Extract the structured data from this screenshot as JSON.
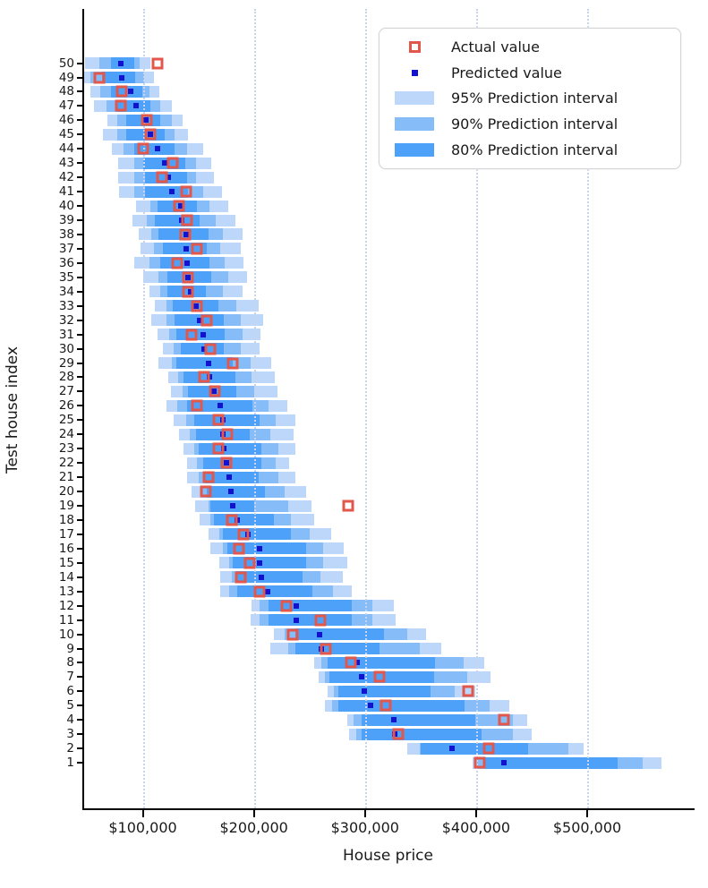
{
  "figure": {
    "xlabel": "House price",
    "ylabel": "Test house index"
  },
  "legend": {
    "items": [
      {
        "label": "Actual value",
        "marker": "actual"
      },
      {
        "label": "Predicted value",
        "marker": "predicted"
      },
      {
        "label": "95% Prediction interval",
        "marker": "swatch",
        "color_key": "p95"
      },
      {
        "label": "90% Prediction interval",
        "marker": "swatch",
        "color_key": "p90"
      },
      {
        "label": "80% Prediction interval",
        "marker": "swatch",
        "color_key": "p80"
      }
    ]
  },
  "chart_data": {
    "type": "bar",
    "orientation": "horizontal",
    "title": "",
    "xlabel": "House price",
    "ylabel": "Test house index",
    "xlim": [
      45600,
      595900
    ],
    "grid": "vertical-dotted",
    "legend_position": "upper right",
    "x_tick_values": [
      100000,
      200000,
      300000,
      400000,
      500000
    ],
    "x_tick_labels": [
      "$100,000",
      "$200,000",
      "$300,000",
      "$400,000",
      "$500,000"
    ],
    "colors": {
      "p95": "#bdd7fb",
      "p90": "#86bdf8",
      "p80": "#4da1f8",
      "predicted": "#1212cf",
      "actual": "#e2574b",
      "grid": "#c9d4ec",
      "axis": "#000000"
    },
    "rows": [
      {
        "index": 50,
        "p95": [
          48000,
          107000
        ],
        "p90": [
          61000,
          97000
        ],
        "p80": [
          71000,
          92000
        ],
        "predicted": 80000,
        "actual": 113000
      },
      {
        "index": 49,
        "p95": [
          45000,
          110000
        ],
        "p90": [
          53000,
          101000
        ],
        "p80": [
          63000,
          93000
        ],
        "predicted": 81000,
        "actual": 61000
      },
      {
        "index": 48,
        "p95": [
          53000,
          115000
        ],
        "p90": [
          62000,
          106000
        ],
        "p80": [
          71000,
          100000
        ],
        "predicted": 89000,
        "actual": 81000
      },
      {
        "index": 47,
        "p95": [
          56000,
          126000
        ],
        "p90": [
          67000,
          116000
        ],
        "p80": [
          76000,
          107000
        ],
        "predicted": 94000,
        "actual": 80000
      },
      {
        "index": 46,
        "p95": [
          68000,
          136000
        ],
        "p90": [
          77000,
          126000
        ],
        "p80": [
          85000,
          116000
        ],
        "predicted": 103000,
        "actual": 104000
      },
      {
        "index": 45,
        "p95": [
          64000,
          141000
        ],
        "p90": [
          77000,
          129000
        ],
        "p80": [
          85000,
          120000
        ],
        "predicted": 107000,
        "actual": 107000
      },
      {
        "index": 44,
        "p95": [
          72000,
          154000
        ],
        "p90": [
          83000,
          140000
        ],
        "p80": [
          92000,
          129000
        ],
        "predicted": 113000,
        "actual": 100000
      },
      {
        "index": 43,
        "p95": [
          78000,
          162000
        ],
        "p90": [
          92000,
          148000
        ],
        "p80": [
          100000,
          138000
        ],
        "predicted": 120000,
        "actual": 127000
      },
      {
        "index": 42,
        "p95": [
          78000,
          164000
        ],
        "p90": [
          92000,
          148000
        ],
        "p80": [
          102000,
          140000
        ],
        "predicted": 123000,
        "actual": 117000
      },
      {
        "index": 41,
        "p95": [
          79000,
          171000
        ],
        "p90": [
          92000,
          154000
        ],
        "p80": [
          102000,
          141000
        ],
        "predicted": 126000,
        "actual": 139000
      },
      {
        "index": 40,
        "p95": [
          94000,
          177000
        ],
        "p90": [
          107000,
          160000
        ],
        "p80": [
          113000,
          149000
        ],
        "predicted": 134000,
        "actual": 133000
      },
      {
        "index": 39,
        "p95": [
          91000,
          183000
        ],
        "p90": [
          104000,
          166000
        ],
        "p80": [
          111000,
          151000
        ],
        "predicted": 135000,
        "actual": 140000
      },
      {
        "index": 38,
        "p95": [
          96000,
          190000
        ],
        "p90": [
          108000,
          172000
        ],
        "p80": [
          114000,
          159000
        ],
        "predicted": 139000,
        "actual": 138000
      },
      {
        "index": 37,
        "p95": [
          98000,
          188000
        ],
        "p90": [
          110000,
          170000
        ],
        "p80": [
          118000,
          158000
        ],
        "predicted": 139000,
        "actual": 149000
      },
      {
        "index": 36,
        "p95": [
          92000,
          191000
        ],
        "p90": [
          106000,
          174000
        ],
        "p80": [
          116000,
          160000
        ],
        "predicted": 140000,
        "actual": 131000
      },
      {
        "index": 35,
        "p95": [
          100000,
          194000
        ],
        "p90": [
          114000,
          177000
        ],
        "p80": [
          122000,
          162000
        ],
        "predicted": 141000,
        "actual": 141000
      },
      {
        "index": 34,
        "p95": [
          106000,
          190000
        ],
        "p90": [
          116000,
          172000
        ],
        "p80": [
          122000,
          157000
        ],
        "predicted": 143000,
        "actual": 141000
      },
      {
        "index": 33,
        "p95": [
          111000,
          204000
        ],
        "p90": [
          121000,
          184000
        ],
        "p80": [
          127000,
          168000
        ],
        "predicted": 148000,
        "actual": 149000
      },
      {
        "index": 32,
        "p95": [
          108000,
          208000
        ],
        "p90": [
          121000,
          188000
        ],
        "p80": [
          129000,
          173000
        ],
        "predicted": 151000,
        "actual": 158000
      },
      {
        "index": 31,
        "p95": [
          113000,
          206000
        ],
        "p90": [
          124000,
          190000
        ],
        "p80": [
          130000,
          174000
        ],
        "predicted": 154000,
        "actual": 144000
      },
      {
        "index": 30,
        "p95": [
          118000,
          205000
        ],
        "p90": [
          128000,
          188000
        ],
        "p80": [
          134000,
          173000
        ],
        "predicted": 155000,
        "actual": 161000
      },
      {
        "index": 29,
        "p95": [
          114000,
          216000
        ],
        "p90": [
          126000,
          197000
        ],
        "p80": [
          130000,
          181000
        ],
        "predicted": 159000,
        "actual": 181000
      },
      {
        "index": 28,
        "p95": [
          123000,
          219000
        ],
        "p90": [
          132000,
          198000
        ],
        "p80": [
          137000,
          183000
        ],
        "predicted": 160000,
        "actual": 155000
      },
      {
        "index": 27,
        "p95": [
          125000,
          221000
        ],
        "p90": [
          136000,
          200000
        ],
        "p80": [
          141000,
          184000
        ],
        "predicted": 164000,
        "actual": 165000
      },
      {
        "index": 26,
        "p95": [
          121000,
          230000
        ],
        "p90": [
          131000,
          213000
        ],
        "p80": [
          140000,
          199000
        ],
        "predicted": 170000,
        "actual": 149000
      },
      {
        "index": 25,
        "p95": [
          128000,
          237000
        ],
        "p90": [
          139000,
          220000
        ],
        "p80": [
          146000,
          205000
        ],
        "predicted": 172000,
        "actual": 168000
      },
      {
        "index": 24,
        "p95": [
          133000,
          236000
        ],
        "p90": [
          142000,
          215000
        ],
        "p80": [
          148000,
          196000
        ],
        "predicted": 172000,
        "actual": 176000
      },
      {
        "index": 23,
        "p95": [
          137000,
          237000
        ],
        "p90": [
          146000,
          222000
        ],
        "p80": [
          150000,
          207000
        ],
        "predicted": 173000,
        "actual": 168000
      },
      {
        "index": 22,
        "p95": [
          140000,
          232000
        ],
        "p90": [
          149000,
          220000
        ],
        "p80": [
          154000,
          207000
        ],
        "predicted": 175000,
        "actual": 175000
      },
      {
        "index": 21,
        "p95": [
          140000,
          237000
        ],
        "p90": [
          150000,
          222000
        ],
        "p80": [
          156000,
          204000
        ],
        "predicted": 178000,
        "actual": 159000
      },
      {
        "index": 20,
        "p95": [
          144000,
          247000
        ],
        "p90": [
          153000,
          228000
        ],
        "p80": [
          158000,
          210000
        ],
        "predicted": 179000,
        "actual": 157000
      },
      {
        "index": 19,
        "p95": [
          147000,
          252000
        ],
        "p90": [
          159000,
          231000
        ],
        "p80": [
          161000,
          200000
        ],
        "predicted": 181000,
        "actual": 285000
      },
      {
        "index": 18,
        "p95": [
          151000,
          254000
        ],
        "p90": [
          161000,
          233000
        ],
        "p80": [
          164000,
          218000
        ],
        "predicted": 185000,
        "actual": 180000
      },
      {
        "index": 17,
        "p95": [
          159000,
          270000
        ],
        "p90": [
          169000,
          250000
        ],
        "p80": [
          172000,
          233000
        ],
        "predicted": 195000,
        "actual": 191000
      },
      {
        "index": 16,
        "p95": [
          161000,
          281000
        ],
        "p90": [
          172000,
          262000
        ],
        "p80": [
          176000,
          247000
        ],
        "predicted": 205000,
        "actual": 187000
      },
      {
        "index": 15,
        "p95": [
          169000,
          284000
        ],
        "p90": [
          178000,
          262000
        ],
        "p80": [
          181000,
          247000
        ],
        "predicted": 205000,
        "actual": 196000
      },
      {
        "index": 14,
        "p95": [
          170000,
          280000
        ],
        "p90": [
          180000,
          260000
        ],
        "p80": [
          184000,
          244000
        ],
        "predicted": 207000,
        "actual": 188000
      },
      {
        "index": 13,
        "p95": [
          170000,
          288000
        ],
        "p90": [
          178000,
          271000
        ],
        "p80": [
          185000,
          253000
        ],
        "predicted": 212000,
        "actual": 205000
      },
      {
        "index": 12,
        "p95": [
          198000,
          326000
        ],
        "p90": [
          205000,
          307000
        ],
        "p80": [
          213000,
          288000
        ],
        "predicted": 238000,
        "actual": 229000
      },
      {
        "index": 11,
        "p95": [
          197000,
          328000
        ],
        "p90": [
          205000,
          307000
        ],
        "p80": [
          213000,
          288000
        ],
        "predicted": 238000,
        "actual": 260000
      },
      {
        "index": 10,
        "p95": [
          218000,
          355000
        ],
        "p90": [
          228000,
          338000
        ],
        "p80": [
          237000,
          317000
        ],
        "predicted": 259000,
        "actual": 235000
      },
      {
        "index": 9,
        "p95": [
          215000,
          369000
        ],
        "p90": [
          231000,
          349000
        ],
        "p80": [
          237000,
          313000
        ],
        "predicted": 261000,
        "actual": 265000
      },
      {
        "index": 8,
        "p95": [
          254000,
          407000
        ],
        "p90": [
          261000,
          389000
        ],
        "p80": [
          266000,
          363000
        ],
        "predicted": 293000,
        "actual": 287000
      },
      {
        "index": 7,
        "p95": [
          258000,
          413000
        ],
        "p90": [
          264000,
          392000
        ],
        "p80": [
          268000,
          362000
        ],
        "predicted": 297000,
        "actual": 313000
      },
      {
        "index": 6,
        "p95": [
          266000,
          399000
        ],
        "p90": [
          272000,
          381000
        ],
        "p80": [
          276000,
          359000
        ],
        "predicted": 299000,
        "actual": 393000
      },
      {
        "index": 5,
        "p95": [
          264000,
          430000
        ],
        "p90": [
          270000,
          412000
        ],
        "p80": [
          276000,
          390000
        ],
        "predicted": 305000,
        "actual": 319000
      },
      {
        "index": 4,
        "p95": [
          284000,
          446000
        ],
        "p90": [
          290000,
          433000
        ],
        "p80": [
          297000,
          399000
        ],
        "predicted": 326000,
        "actual": 425000
      },
      {
        "index": 3,
        "p95": [
          286000,
          450000
        ],
        "p90": [
          292000,
          433000
        ],
        "p80": [
          297000,
          405000
        ],
        "predicted": 327000,
        "actual": 330000
      },
      {
        "index": 2,
        "p95": [
          338000,
          497000
        ],
        "p90": [
          349000,
          483000
        ],
        "p80": [
          350000,
          447000
        ],
        "predicted": 378000,
        "actual": 411000
      },
      {
        "index": 1,
        "p95": [
          397000,
          567000
        ],
        "p90": [
          401000,
          550000
        ],
        "p80": [
          408000,
          527000
        ],
        "predicted": 425000,
        "actual": 403000
      }
    ]
  }
}
